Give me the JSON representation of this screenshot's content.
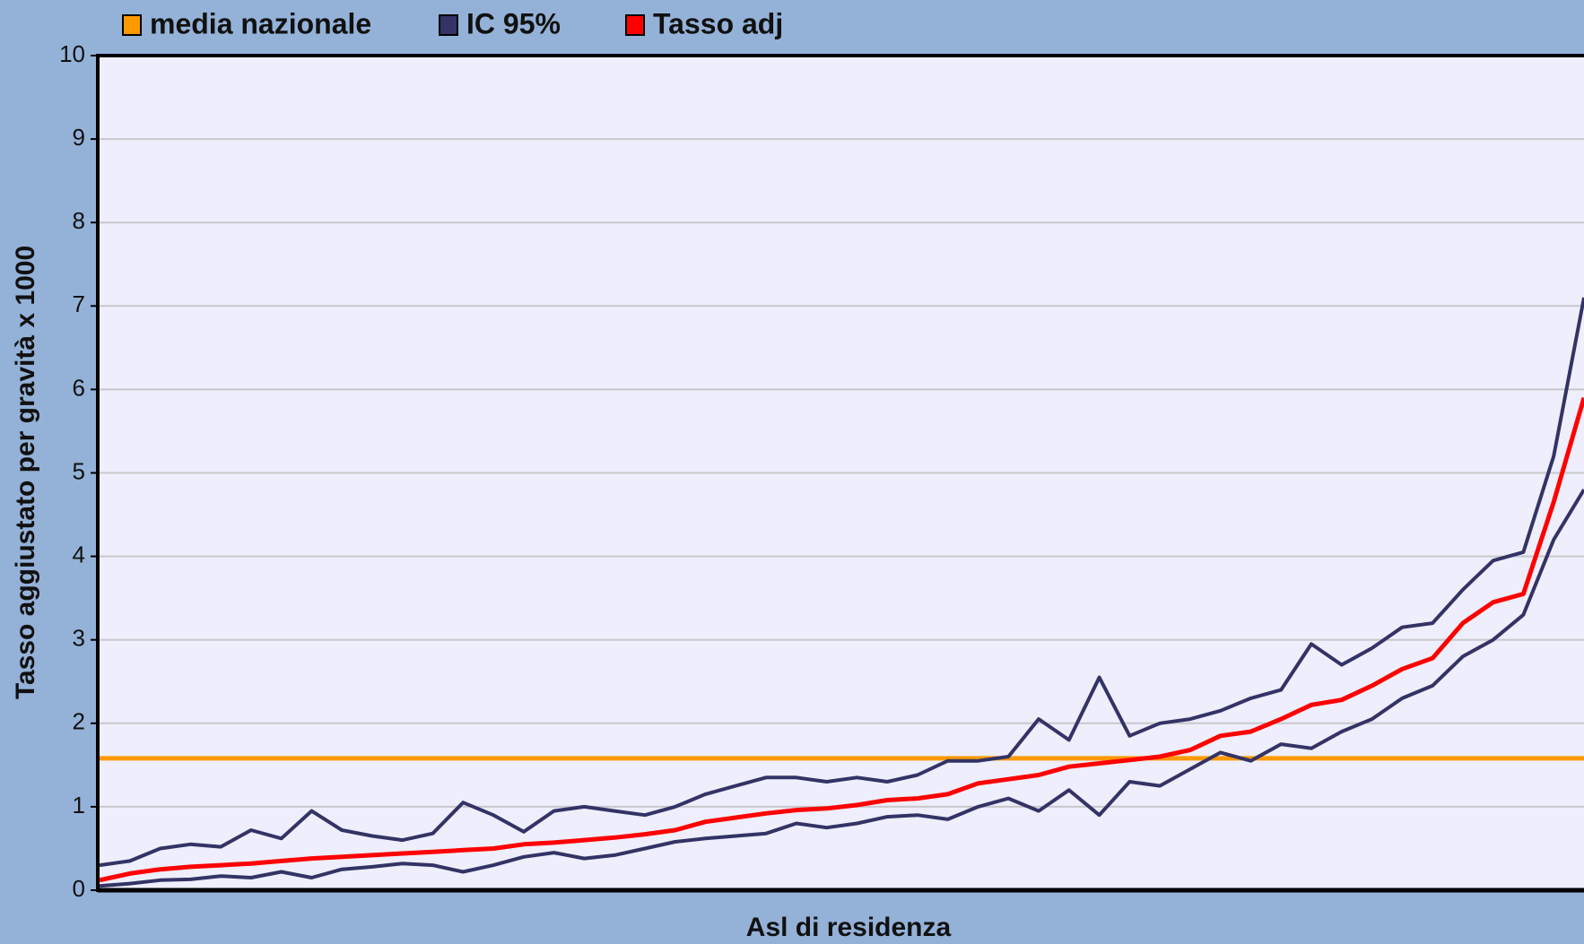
{
  "chart_data": {
    "type": "line",
    "x_label": "Asl di residenza",
    "y_label": "Tasso aggiustato per gravità x 1000",
    "ylim": [
      0,
      10
    ],
    "yticks": [
      0,
      1,
      2,
      3,
      4,
      5,
      6,
      7,
      8,
      9,
      10
    ],
    "grid": true,
    "legend": "top",
    "hline": {
      "name": "media nazionale",
      "color": "#ff9900",
      "value": 1.58
    },
    "series": [
      {
        "name": "IC 95%",
        "color": "#333366",
        "lower": [
          0.05,
          0.08,
          0.12,
          0.13,
          0.17,
          0.15,
          0.22,
          0.15,
          0.25,
          0.28,
          0.32,
          0.3,
          0.22,
          0.3,
          0.4,
          0.45,
          0.38,
          0.42,
          0.5,
          0.58,
          0.62,
          0.65,
          0.68,
          0.8,
          0.75,
          0.8,
          0.88,
          0.9,
          0.85,
          1.0,
          1.1,
          0.95,
          1.2,
          0.9,
          1.3,
          1.25,
          1.45,
          1.65,
          1.55,
          1.75,
          1.7,
          1.9,
          2.05,
          2.3,
          2.45,
          2.8,
          3.0,
          3.3,
          4.2,
          4.8
        ],
        "upper": [
          0.3,
          0.35,
          0.5,
          0.55,
          0.52,
          0.72,
          0.62,
          0.95,
          0.72,
          0.65,
          0.6,
          0.68,
          1.05,
          0.9,
          0.7,
          0.95,
          1.0,
          0.95,
          0.9,
          1.0,
          1.15,
          1.25,
          1.35,
          1.35,
          1.3,
          1.35,
          1.3,
          1.38,
          1.55,
          1.55,
          1.6,
          2.05,
          1.8,
          2.55,
          1.85,
          2.0,
          2.05,
          2.15,
          2.3,
          2.4,
          2.95,
          2.7,
          2.9,
          3.15,
          3.2,
          3.6,
          3.95,
          4.05,
          5.2,
          7.1
        ]
      },
      {
        "name": "Tasso adj",
        "color": "#ff0000",
        "values": [
          0.12,
          0.2,
          0.25,
          0.28,
          0.3,
          0.32,
          0.35,
          0.38,
          0.4,
          0.42,
          0.44,
          0.46,
          0.48,
          0.5,
          0.55,
          0.57,
          0.6,
          0.63,
          0.67,
          0.72,
          0.82,
          0.87,
          0.92,
          0.96,
          0.98,
          1.02,
          1.08,
          1.1,
          1.15,
          1.28,
          1.33,
          1.38,
          1.48,
          1.52,
          1.56,
          1.6,
          1.68,
          1.85,
          1.9,
          2.05,
          2.22,
          2.28,
          2.45,
          2.65,
          2.78,
          3.2,
          3.45,
          3.55,
          4.65,
          5.9
        ]
      }
    ]
  }
}
